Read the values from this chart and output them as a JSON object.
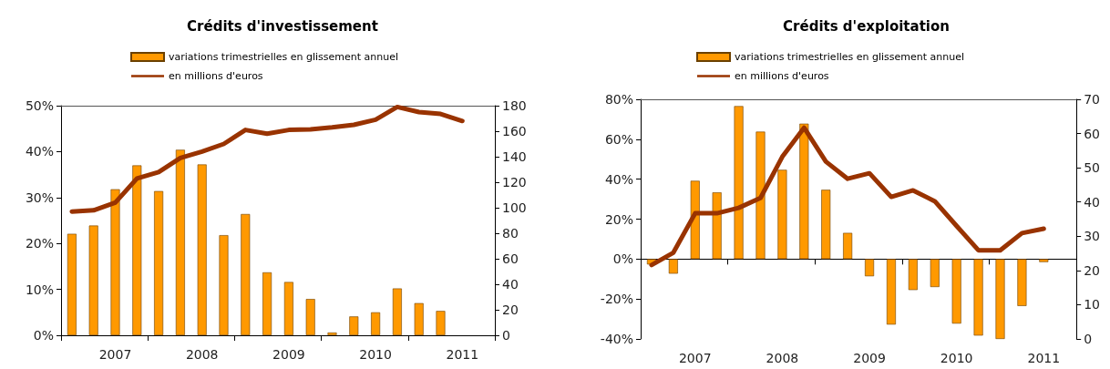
{
  "chart_data": [
    {
      "type": "bar",
      "title": "Crédits d'investissement",
      "legend": "top",
      "categories": [
        null,
        null,
        "2007",
        null,
        null,
        null,
        "2008",
        null,
        null,
        null,
        "2009",
        null,
        null,
        null,
        "2010",
        null,
        null,
        null,
        "2011",
        null
      ],
      "ylim": [
        0,
        50
      ],
      "yticks": [
        {
          "value": 0,
          "label": "0%"
        },
        {
          "value": 10,
          "label": "10%"
        },
        {
          "value": 20,
          "label": "20%"
        },
        {
          "value": 30,
          "label": "30%"
        },
        {
          "value": 40,
          "label": "40%"
        },
        {
          "value": 50,
          "label": "50%"
        }
      ],
      "y2lim": [
        0,
        180
      ],
      "y2ticks": [
        0,
        20,
        40,
        60,
        80,
        100,
        120,
        140,
        160,
        180
      ],
      "series": [
        {
          "name": "variations trimestrielles en glissement annuel",
          "color": "#ff9900",
          "values": [
            22.1,
            23.9,
            31.8,
            37.0,
            31.4,
            40.4,
            37.2,
            21.8,
            26.4,
            13.7,
            11.6,
            7.9,
            0.6,
            4.1,
            5.0,
            10.2,
            7.0,
            5.3,
            null,
            null
          ]
        },
        {
          "name": "en millions d'euros",
          "type": "line",
          "axis": "y2",
          "color": "#993300",
          "values": [
            97,
            98,
            104,
            123,
            128,
            139,
            144,
            150,
            161,
            158,
            161,
            161.5,
            163,
            165,
            169,
            179,
            175,
            173.5,
            168,
            null
          ]
        }
      ]
    },
    {
      "type": "bar",
      "title": "Crédits d'exploitation",
      "legend": "top",
      "categories": [
        null,
        null,
        "2007",
        null,
        null,
        null,
        "2008",
        null,
        null,
        null,
        "2009",
        null,
        null,
        null,
        "2010",
        null,
        null,
        null,
        "2011",
        null
      ],
      "ylim": [
        -40,
        80
      ],
      "yticks": [
        {
          "value": -40,
          "label": "-40%"
        },
        {
          "value": -20,
          "label": "-20%"
        },
        {
          "value": 0,
          "label": "0%"
        },
        {
          "value": 20,
          "label": "20%"
        },
        {
          "value": 40,
          "label": "40%"
        },
        {
          "value": 60,
          "label": "60%"
        },
        {
          "value": 80,
          "label": "80%"
        }
      ],
      "y2lim": [
        0,
        70
      ],
      "y2ticks": [
        0,
        10,
        20,
        30,
        40,
        50,
        60,
        70
      ],
      "series": [
        {
          "name": "variations trimestrielles en glissement annuel",
          "color": "#ff9900",
          "values": [
            -2.7,
            -7.3,
            39.2,
            33.4,
            76.6,
            63.8,
            44.7,
            67.8,
            34.7,
            13.1,
            -8.6,
            -32.8,
            -15.5,
            -14.0,
            -32.3,
            -38.3,
            -40,
            -23.5,
            -1.5,
            null
          ]
        },
        {
          "name": "en millions d'euros",
          "type": "line",
          "axis": "y2",
          "color": "#993300",
          "values": [
            21.6,
            25.2,
            36.7,
            36.7,
            38.3,
            41.2,
            53.2,
            61.7,
            51.8,
            46.8,
            48.4,
            41.5,
            43.4,
            40.2,
            33.0,
            25.9,
            25.9,
            30.9,
            32.2,
            null
          ]
        }
      ]
    }
  ]
}
